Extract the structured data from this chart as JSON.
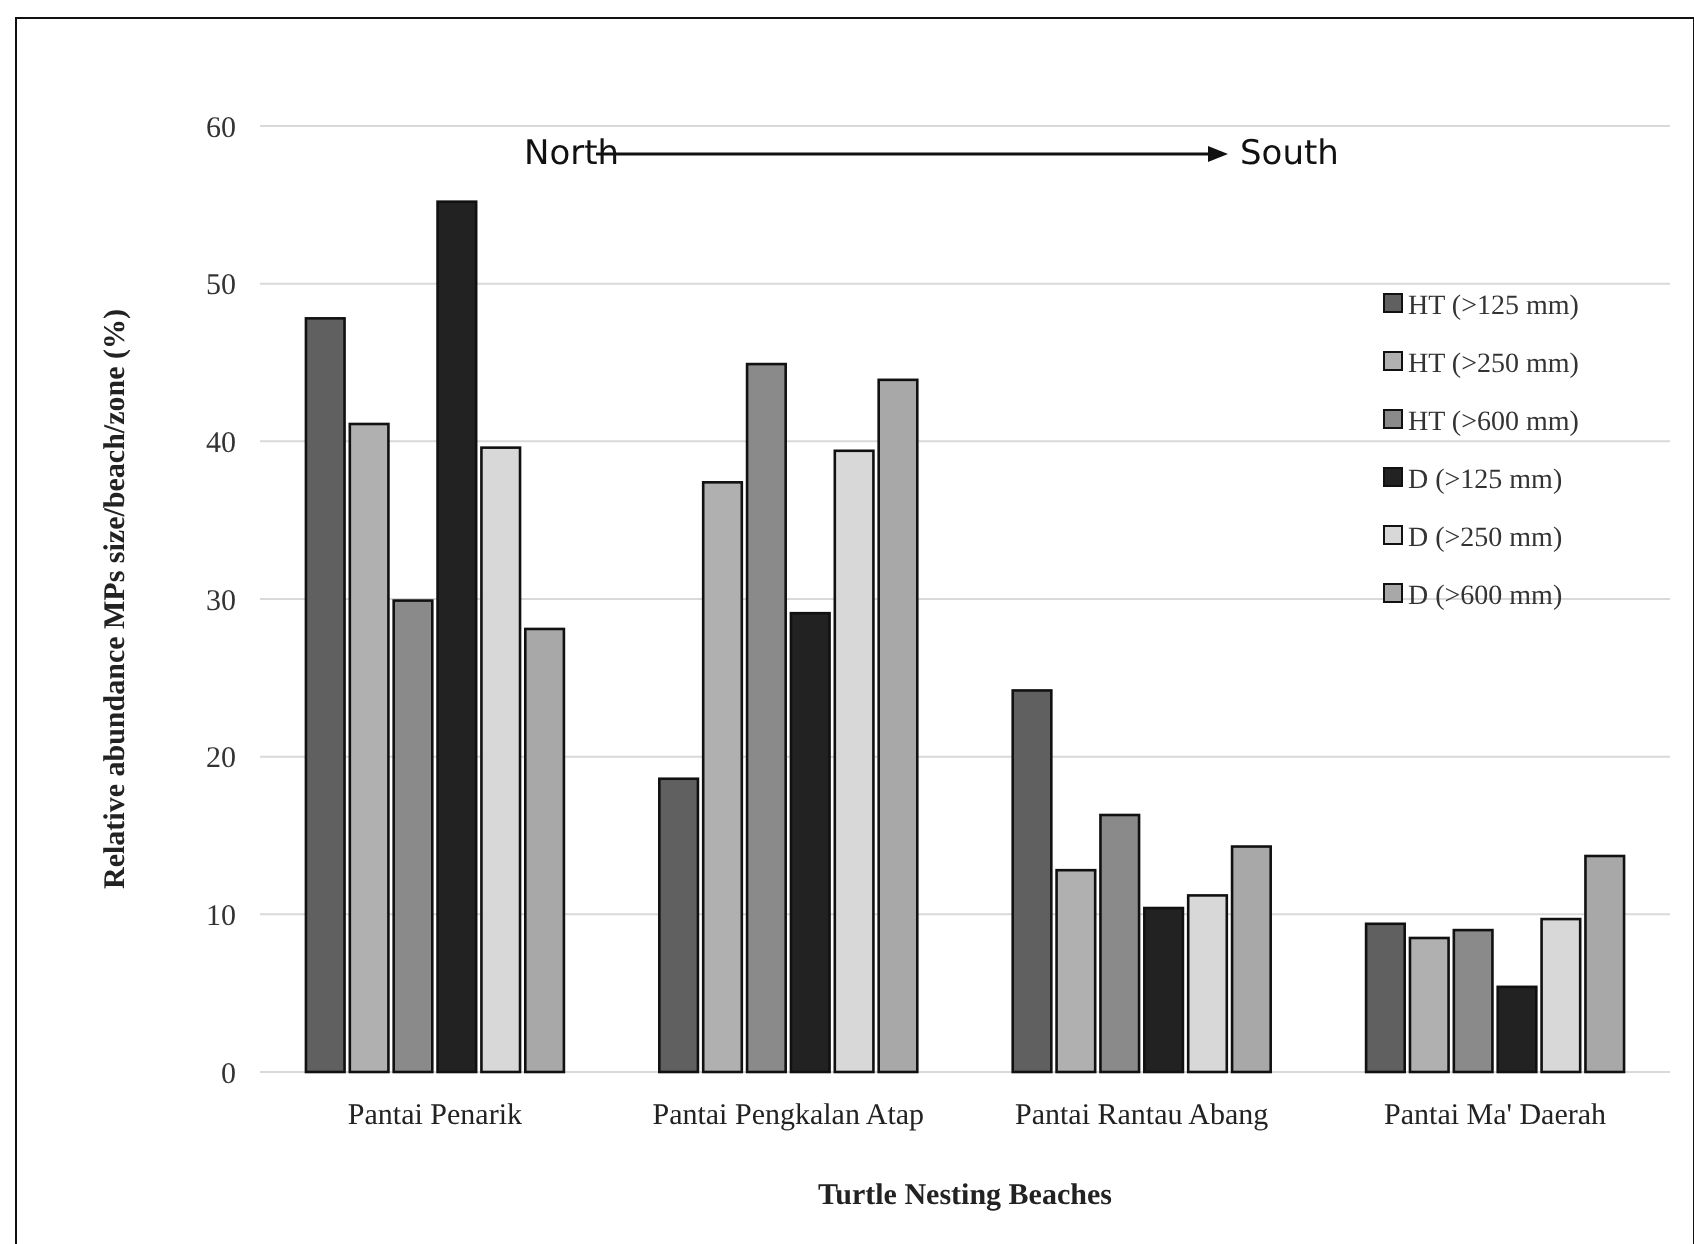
{
  "chart_data": {
    "type": "bar",
    "xlabel": "Turtle Nesting Beaches",
    "ylabel": "Relative abundance MPs size/beach/zone (%)",
    "categories": [
      "Pantai Penarik",
      "Pantai Pengkalan Atap",
      "Pantai Rantau Abang",
      "Pantai Ma' Daerah"
    ],
    "series": [
      {
        "name": "HT (>125 mm)",
        "color": "#606060",
        "values": [
          47.8,
          18.6,
          24.2,
          9.4
        ]
      },
      {
        "name": "HT (>250 mm)",
        "color": "#b0b0b0",
        "values": [
          41.1,
          37.4,
          12.8,
          8.5
        ]
      },
      {
        "name": "HT (>600 mm)",
        "color": "#8a8a8a",
        "values": [
          29.9,
          44.9,
          16.3,
          9.0
        ]
      },
      {
        "name": "D (>125 mm)",
        "color": "#222222",
        "values": [
          55.2,
          29.1,
          10.4,
          5.4
        ]
      },
      {
        "name": "D (>250 mm)",
        "color": "#d8d8d8",
        "values": [
          39.6,
          39.4,
          11.2,
          9.7
        ]
      },
      {
        "name": "D (>600 mm)",
        "color": "#a8a8a8",
        "values": [
          28.1,
          43.9,
          14.3,
          13.7
        ]
      }
    ],
    "ylim": [
      0,
      60
    ],
    "yticks": [
      0,
      10,
      20,
      30,
      40,
      50,
      60
    ],
    "grid": "y",
    "legend": "top right",
    "annotations": [
      "North",
      "South"
    ]
  }
}
